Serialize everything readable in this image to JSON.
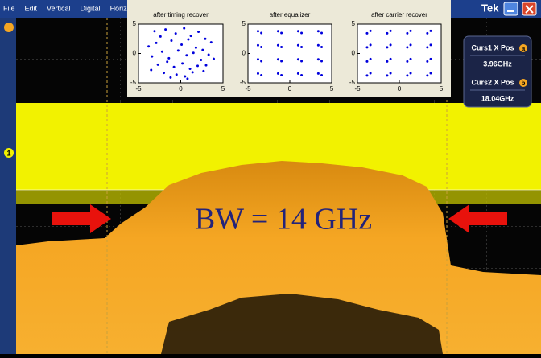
{
  "menu": [
    "File",
    "Edit",
    "Vertical",
    "Digital",
    "Horiz/Acq"
  ],
  "brand": "Tek",
  "insets": [
    {
      "type": "scatter",
      "title": "after timing recover",
      "color": "#0000dd",
      "xlim": [
        -5,
        5
      ],
      "ylim": [
        -5,
        5
      ],
      "xticks": [
        -5,
        0,
        5
      ],
      "yticks": [
        -5,
        0,
        5
      ],
      "x": [
        -3.1,
        -2.4,
        -1.8,
        -0.6,
        0.4,
        1.2,
        2.1,
        2.9,
        3.6,
        -3.8,
        -2.9,
        -1.1,
        0.1,
        0.9,
        1.8,
        2.6,
        3.3,
        -3.4,
        -2.2,
        -1.4,
        -0.3,
        0.7,
        1.5,
        2.4,
        3.9,
        -2.7,
        -1.6,
        -0.8,
        0.2,
        1.1,
        2.0,
        3.0,
        -3.5,
        -2.0,
        -0.5,
        0.5,
        1.4,
        2.7,
        -1.2,
        0.8
      ],
      "y": [
        3.8,
        2.9,
        4.1,
        3.4,
        4.3,
        3.0,
        3.7,
        2.5,
        1.9,
        1.2,
        1.8,
        2.2,
        1.5,
        2.4,
        1.0,
        0.6,
        -0.2,
        -0.5,
        0.3,
        -0.8,
        0.5,
        -0.3,
        0.1,
        -1.1,
        -0.9,
        -1.9,
        -1.4,
        -2.3,
        -1.7,
        -2.6,
        -2.1,
        -2.0,
        -2.8,
        -3.3,
        -3.6,
        -3.9,
        -3.2,
        -3.0,
        -4.1,
        -4.3
      ]
    },
    {
      "type": "scatter",
      "title": "after equalizer",
      "color": "#0000dd",
      "xlim": [
        -5,
        5
      ],
      "ylim": [
        -5,
        5
      ],
      "xticks": [
        -5,
        0,
        5
      ],
      "yticks": [
        -5,
        0,
        5
      ],
      "x": [
        -3.8,
        -3.4,
        -1.4,
        -1.0,
        1.0,
        1.4,
        3.4,
        3.8,
        -3.8,
        -3.4,
        -1.4,
        -1.0,
        1.0,
        1.4,
        3.4,
        3.8,
        -3.8,
        -3.4,
        -1.4,
        -1.0,
        1.0,
        1.4,
        3.4,
        3.8,
        -3.8,
        -3.4,
        -1.4,
        -1.0,
        1.0,
        1.4,
        3.4,
        3.8
      ],
      "y": [
        3.8,
        3.5,
        3.8,
        3.5,
        3.8,
        3.5,
        3.8,
        3.5,
        1.4,
        1.1,
        1.4,
        1.1,
        1.4,
        1.1,
        1.4,
        1.1,
        -1.0,
        -1.3,
        -1.0,
        -1.3,
        -1.0,
        -1.3,
        -1.0,
        -1.3,
        -3.4,
        -3.7,
        -3.4,
        -3.7,
        -3.4,
        -3.7,
        -3.4,
        -3.7
      ]
    },
    {
      "type": "scatter",
      "title": "after carrier recover",
      "color": "#0000dd",
      "xlim": [
        -5,
        5
      ],
      "ylim": [
        -5,
        5
      ],
      "xticks": [
        -5,
        0,
        5
      ],
      "yticks": [
        -5,
        0,
        5
      ],
      "x": [
        -3.45,
        -3.85,
        -1.05,
        -1.45,
        1.35,
        0.95,
        3.75,
        3.35,
        -3.45,
        -3.85,
        -1.05,
        -1.45,
        1.35,
        0.95,
        3.75,
        3.35,
        -3.45,
        -3.85,
        -1.05,
        -1.45,
        1.35,
        0.95,
        3.75,
        3.35,
        -3.45,
        -3.85,
        -1.05,
        -1.45,
        1.35,
        0.95,
        3.75,
        3.35
      ],
      "y": [
        3.85,
        3.45,
        3.85,
        3.45,
        3.85,
        3.45,
        3.85,
        3.45,
        1.45,
        1.05,
        1.45,
        1.05,
        1.45,
        1.05,
        1.45,
        1.05,
        -0.95,
        -1.35,
        -0.95,
        -1.35,
        -0.95,
        -1.35,
        -0.95,
        -1.35,
        -3.35,
        -3.75,
        -3.35,
        -3.75,
        -3.35,
        -3.75,
        -3.35,
        -3.75
      ]
    }
  ],
  "cursors": {
    "curs1_label": "Curs1 X Pos",
    "curs1_marker": "a",
    "curs1_value": "3.96GHz",
    "curs2_label": "Curs2 X Pos",
    "curs2_marker": "b",
    "curs2_value": "18.04GHz"
  },
  "channel_marker": "1",
  "annotation": "BW = 14 GHz"
}
